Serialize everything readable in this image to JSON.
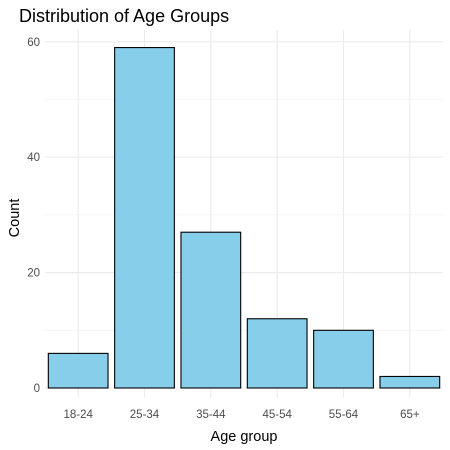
{
  "chart_data": {
    "type": "bar",
    "title": "Distribution of Age Groups",
    "xlabel": "Age group",
    "ylabel": "Count",
    "categories": [
      "18-24",
      "25-34",
      "35-44",
      "45-54",
      "55-64",
      "65+"
    ],
    "values": [
      6,
      59,
      27,
      12,
      10,
      2
    ],
    "ylim": [
      0,
      63
    ],
    "yticks": [
      0,
      20,
      40,
      60
    ],
    "grid": true,
    "legend": "none",
    "colors": {
      "bar_fill": "#87CEEB",
      "bar_stroke": "#000000",
      "grid_major": "#ebebeb",
      "grid_minor": "#f3f3f3"
    }
  }
}
